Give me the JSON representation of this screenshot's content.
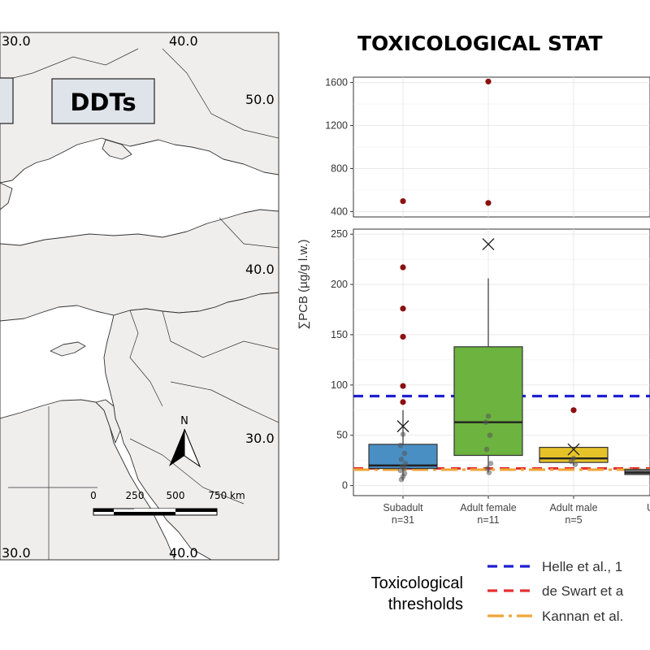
{
  "map": {
    "labels": {
      "lon_top_left": "30.0",
      "lon_top_right": "40.0",
      "lat_50": "50.0",
      "lat_40": "40.0",
      "lat_30": "30.0",
      "lon_bottom_left": "30.0",
      "lon_bottom_right": "40.0"
    },
    "badge_text": "DDTs",
    "north_label": "N",
    "scale_labels": [
      "0",
      "250",
      "500",
      "750 km"
    ],
    "colors": {
      "land": "#f0eeed",
      "sea": "#ffffff",
      "badge": "#dfe4ea",
      "border": "#333333"
    }
  },
  "chart_title": "TOXICOLOGICAL STAT",
  "chart_data": {
    "type": "box",
    "title": "TOXICOLOGICAL STAT",
    "ylabel": "∑PCB (µg/g l.w.)",
    "categories": [
      "Subadult",
      "Adult female",
      "Adult male",
      "Unde"
    ],
    "category_labels": [
      {
        "name": "Subadult",
        "n": "n=31"
      },
      {
        "name": "Adult female",
        "n": "n=11"
      },
      {
        "name": "Adult male",
        "n": "n=5"
      },
      {
        "name": "Unde",
        "n": "n"
      }
    ],
    "upper_panel": {
      "ylim": [
        350,
        1650
      ],
      "ticks": [
        400,
        800,
        1200,
        1600
      ]
    },
    "lower_panel": {
      "ylim": [
        -10,
        255
      ],
      "ticks": [
        0,
        50,
        100,
        150,
        200,
        250
      ]
    },
    "boxes": [
      {
        "category": "Subadult",
        "q1": 17,
        "median": 20,
        "q3": 41,
        "whisker_low": 5,
        "whisker_high": 75,
        "mean": 59,
        "color": "#4a8fc4"
      },
      {
        "category": "Adult female",
        "q1": 30,
        "median": 63,
        "q3": 138,
        "whisker_low": 13,
        "whisker_high": 206,
        "mean": 240,
        "color": "#6db33f"
      },
      {
        "category": "Adult male",
        "q1": 23,
        "median": 27,
        "q3": 38,
        "whisker_low": 20,
        "whisker_high": 38,
        "mean": 36,
        "color": "#e6c229"
      },
      {
        "category": "Unde",
        "q1": 11,
        "median": 13,
        "q3": 16,
        "whisker_low": 10,
        "whisker_high": 18,
        "mean": null,
        "color": "#777777"
      }
    ],
    "outliers": [
      {
        "category": "Subadult",
        "values": [
          497,
          217,
          176,
          148,
          99,
          83
        ]
      },
      {
        "category": "Adult female",
        "values": [
          1610,
          480
        ]
      },
      {
        "category": "Adult male",
        "values": [
          75
        ]
      }
    ],
    "points": [
      {
        "category": "Subadult",
        "values": [
          51,
          40,
          32,
          26,
          22,
          19,
          17,
          15,
          12,
          9,
          6
        ]
      },
      {
        "category": "Adult female",
        "values": [
          69,
          63,
          50,
          36,
          22,
          17,
          13
        ]
      },
      {
        "category": "Adult male",
        "values": [
          27,
          24,
          21
        ]
      }
    ],
    "thresholds": [
      {
        "label": "Helle et al., 1",
        "value": 89,
        "color": "#1f1fd1",
        "dash": "12,8"
      },
      {
        "label": "de Swart et a",
        "value": 17,
        "color": "#e63030",
        "dash": "12,8"
      },
      {
        "label": "Kannan et al.",
        "value": 17,
        "color": "#f0a63a",
        "dash": "20,6,4,6"
      }
    ],
    "legend_title": [
      "Toxicological",
      "thresholds"
    ],
    "outlier_color": "#8b1010",
    "grid": true
  }
}
